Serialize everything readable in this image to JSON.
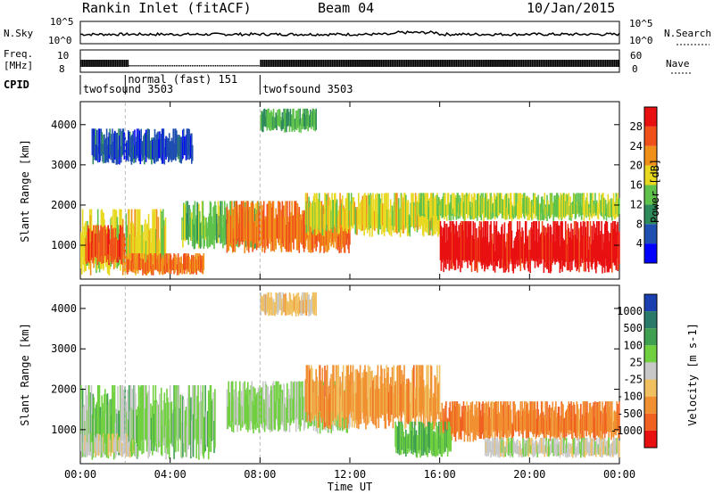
{
  "header": {
    "station": "Rankin Inlet (fitACF)",
    "beam": "Beam 04",
    "date": "10/Jan/2015"
  },
  "status_panel": {
    "nsky_label": "N.Sky",
    "nsky_ticks": [
      "10^5",
      "10^0"
    ],
    "nsearch_label": "N.Search",
    "nsearch_ticks": [
      "10^5",
      "10^0"
    ],
    "freq_label": "Freq.",
    "freq_unit": "[MHz]",
    "freq_ticks": [
      "10",
      "8"
    ],
    "nave_label": "Nave",
    "nave_ticks": [
      "60",
      "0"
    ],
    "cpid_label": "CPID",
    "cpid_segments": [
      {
        "name": "twofsound 3503",
        "start_hour": 0,
        "end_hour": 2.0
      },
      {
        "name": "normal (fast) 151",
        "start_hour": 2.0,
        "end_hour": 8.0
      },
      {
        "name": "twofsound 3503",
        "start_hour": 8.0,
        "end_hour": 24.0
      }
    ]
  },
  "axes": {
    "ylabel": "Slant Range [km]",
    "yticks": [
      "4000",
      "3000",
      "2000",
      "1000"
    ],
    "xlabel": "Time UT",
    "xticks": [
      "00:00",
      "04:00",
      "08:00",
      "12:00",
      "16:00",
      "20:00",
      "00:00"
    ]
  },
  "colorbars": {
    "power": {
      "title": "Power [dB]",
      "labels": [
        "28",
        "24",
        "20",
        "16",
        "12",
        "8",
        "4"
      ],
      "colors": [
        "#0000ff",
        "#1f4fb0",
        "#2e8a5a",
        "#5fc24a",
        "#e8d820",
        "#f0901a",
        "#f0501a",
        "#e81010"
      ]
    },
    "velocity": {
      "title": "Velocity [m s-1]",
      "labels": [
        "1000",
        "500",
        "100",
        "25",
        "-25",
        "-100",
        "-500",
        "-1000"
      ],
      "colors": [
        "#1a3fb0",
        "#2a7a6a",
        "#3ea050",
        "#70d040",
        "#c8c8c8",
        "#f0c060",
        "#f09030",
        "#f06020",
        "#e81010"
      ]
    }
  },
  "chart_data": [
    {
      "type": "heatmap",
      "title": "Power",
      "x_unit": "hours UT",
      "y_unit": "km",
      "xlim": [
        0,
        24
      ],
      "ylim": [
        180,
        4550
      ],
      "cbar_range": [
        0,
        32
      ],
      "regions": [
        {
          "t0": 0.0,
          "t1": 3.8,
          "r0": 250,
          "r1": 1900,
          "value": 18
        },
        {
          "t0": 0.2,
          "t1": 2.0,
          "r0": 500,
          "r1": 1500,
          "value": 26
        },
        {
          "t0": 2.0,
          "t1": 5.5,
          "r0": 250,
          "r1": 800,
          "value": 24
        },
        {
          "t0": 4.5,
          "t1": 8.0,
          "r0": 900,
          "r1": 2100,
          "value": 14
        },
        {
          "t0": 6.5,
          "t1": 12.0,
          "r0": 800,
          "r1": 2100,
          "value": 24
        },
        {
          "t0": 8.0,
          "t1": 10.5,
          "r0": 3800,
          "r1": 4400,
          "value": 12
        },
        {
          "t0": 10.0,
          "t1": 16.0,
          "r0": 1200,
          "r1": 2300,
          "value": 18
        },
        {
          "t0": 16.0,
          "t1": 24.0,
          "r0": 300,
          "r1": 1600,
          "value": 30
        },
        {
          "t0": 15.0,
          "t1": 24.0,
          "r0": 1600,
          "r1": 2300,
          "value": 16
        },
        {
          "t0": 0.5,
          "t1": 5.0,
          "r0": 3000,
          "r1": 3900,
          "value": 6
        }
      ]
    },
    {
      "type": "heatmap",
      "title": "Velocity",
      "x_unit": "hours UT",
      "y_unit": "km",
      "xlim": [
        0,
        24
      ],
      "ylim": [
        180,
        4550
      ],
      "cbar_range": [
        -1000,
        1000
      ],
      "regions": [
        {
          "t0": 0.0,
          "t1": 6.0,
          "r0": 250,
          "r1": 2100,
          "value": 200
        },
        {
          "t0": 0.0,
          "t1": 2.5,
          "r0": 300,
          "r1": 900,
          "value": 0
        },
        {
          "t0": 6.5,
          "t1": 12.0,
          "r0": 900,
          "r1": 2200,
          "value": 150
        },
        {
          "t0": 8.0,
          "t1": 10.5,
          "r0": 3800,
          "r1": 4400,
          "value": -200
        },
        {
          "t0": 10.0,
          "t1": 16.0,
          "r0": 1000,
          "r1": 2600,
          "value": -400
        },
        {
          "t0": 16.0,
          "t1": 24.0,
          "r0": 700,
          "r1": 1700,
          "value": -500
        },
        {
          "t0": 18.0,
          "t1": 24.0,
          "r0": 300,
          "r1": 800,
          "value": 0
        },
        {
          "t0": 14.0,
          "t1": 16.5,
          "r0": 300,
          "r1": 1200,
          "value": 300
        }
      ]
    }
  ]
}
